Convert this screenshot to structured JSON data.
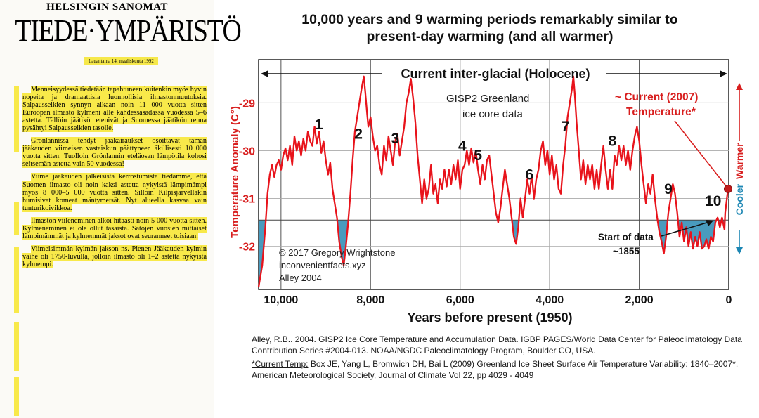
{
  "clipping": {
    "publication": "HELSINGIN SANOMAT",
    "section": "TIEDE·YMPÄRISTÖ",
    "date": "Lauantaina 14. maaliskuuta 1992",
    "paragraphs": [
      "Menneisyydessä tiedetään tapahtuneen kuitenkin myös hyvin nopeita ja dramaattisia luonnollisia ilmastonmuutoksia. Salpausselkien synnyn aikaan noin 11 000 vuotta sitten Euroopan ilmasto kylmeni alle kahdessasadassa vuodessa 5–6 astetta. Tällöin jäätiköt etenivät ja Suomessa jäätikön reuna pysähtyi Salpausselkien tasolle.",
      "Grönlannissa tehdyt jääkairaukset osoittavat tämän jääkauden viimeisen vastaiskun päättyneen äkillisesti 10 000 vuotta sitten. Tuolloin Grönlannin eteläosan lämpötila kohosi seitsemän astetta vain 50 vuodessa!",
      "Viime jääkauden jälkeisistä kerrostumista tiedämme, että Suomen ilmasto oli noin kaksi astetta nykyistä lämpimämpi myös 8 000–5 000 vuotta sitten. Silloin Kilpisjärvelläkin humisivat komeat mäntymetsät. Nyt alueella kasvaa vain tunturikoivikkoa.",
      "Ilmaston viileneminen alkoi hitaasti noin 5 000 vuotta sitten. Kylmeneminen ei ole ollut tasaista. Satojen vuosien mittaiset lämpimämmät ja kylmemmät jaksot ovat seuranneet toisiaan.",
      "Viimeisimmän kylmän jakson ns. Pienen Jääkauden kylmin vaihe oli 1750-luvulla, jolloin ilmasto oli 1–2 astetta nykyistä kylmempi."
    ]
  },
  "chart_data": {
    "type": "line",
    "title": "10,000 years and 9 warming periods remarkably similar to present-day warming (and all warmer)",
    "xlabel": "Years before present (1950)",
    "ylabel": "Temperature Anomaly (C°)",
    "xlim": [
      10500,
      0
    ],
    "ylim": [
      -32.9,
      -28.1
    ],
    "x_ticks": [
      10000,
      8000,
      6000,
      4000,
      2000,
      0
    ],
    "x_tick_labels": [
      "10,000",
      "8,000",
      "6,000",
      "4,000",
      "2,000",
      "0"
    ],
    "y_ticks": [
      -29,
      -30,
      -31,
      -32
    ],
    "y_tick_labels": [
      "-29",
      "-30",
      "-31",
      "-32"
    ],
    "reference_line": -31.45,
    "series": [
      {
        "values": [
          [
            10500,
            -32.85
          ],
          [
            10420,
            -32.4
          ],
          [
            10350,
            -31.6
          ],
          [
            10300,
            -30.9
          ],
          [
            10250,
            -30.5
          ],
          [
            10200,
            -30.3
          ],
          [
            10150,
            -30.55
          ],
          [
            10100,
            -30.3
          ],
          [
            10050,
            -30.2
          ],
          [
            10000,
            -30.4
          ],
          [
            9950,
            -30.1
          ],
          [
            9900,
            -29.95
          ],
          [
            9850,
            -30.2
          ],
          [
            9800,
            -29.9
          ],
          [
            9750,
            -30.3
          ],
          [
            9700,
            -29.7
          ],
          [
            9650,
            -30.0
          ],
          [
            9600,
            -29.8
          ],
          [
            9550,
            -30.1
          ],
          [
            9500,
            -29.75
          ],
          [
            9450,
            -30.0
          ],
          [
            9400,
            -29.6
          ],
          [
            9350,
            -29.8
          ],
          [
            9300,
            -29.9
          ],
          [
            9250,
            -29.5
          ],
          [
            9200,
            -29.85
          ],
          [
            9150,
            -29.6
          ],
          [
            9100,
            -30.05
          ],
          [
            9050,
            -29.8
          ],
          [
            9000,
            -30.2
          ],
          [
            8950,
            -30.5
          ],
          [
            8900,
            -30.25
          ],
          [
            8850,
            -30.8
          ],
          [
            8800,
            -31.1
          ],
          [
            8750,
            -31.4
          ],
          [
            8700,
            -31.9
          ],
          [
            8650,
            -32.2
          ],
          [
            8600,
            -32.4
          ],
          [
            8550,
            -32.0
          ],
          [
            8500,
            -31.5
          ],
          [
            8450,
            -30.9
          ],
          [
            8400,
            -30.2
          ],
          [
            8350,
            -29.6
          ],
          [
            8300,
            -29.3
          ],
          [
            8250,
            -29.0
          ],
          [
            8200,
            -28.7
          ],
          [
            8150,
            -28.45
          ],
          [
            8120,
            -28.75
          ],
          [
            8080,
            -29.2
          ],
          [
            8050,
            -29.5
          ],
          [
            8000,
            -29.3
          ],
          [
            7950,
            -29.7
          ],
          [
            7900,
            -30.0
          ],
          [
            7850,
            -29.9
          ],
          [
            7800,
            -30.3
          ],
          [
            7750,
            -30.5
          ],
          [
            7700,
            -29.9
          ],
          [
            7650,
            -30.2
          ],
          [
            7600,
            -29.7
          ],
          [
            7550,
            -30.0
          ],
          [
            7500,
            -30.3
          ],
          [
            7450,
            -29.8
          ],
          [
            7400,
            -29.65
          ],
          [
            7350,
            -30.1
          ],
          [
            7300,
            -29.8
          ],
          [
            7250,
            -29.5
          ],
          [
            7200,
            -29.0
          ],
          [
            7150,
            -28.8
          ],
          [
            7100,
            -28.5
          ],
          [
            7050,
            -28.9
          ],
          [
            7000,
            -29.4
          ],
          [
            6950,
            -30.1
          ],
          [
            6900,
            -30.6
          ],
          [
            6850,
            -31.1
          ],
          [
            6800,
            -30.6
          ],
          [
            6750,
            -31.0
          ],
          [
            6700,
            -30.8
          ],
          [
            6650,
            -30.3
          ],
          [
            6600,
            -30.9
          ],
          [
            6550,
            -30.7
          ],
          [
            6500,
            -31.1
          ],
          [
            6450,
            -30.6
          ],
          [
            6400,
            -30.8
          ],
          [
            6350,
            -30.4
          ],
          [
            6300,
            -30.75
          ],
          [
            6250,
            -30.4
          ],
          [
            6200,
            -30.7
          ],
          [
            6150,
            -30.3
          ],
          [
            6100,
            -30.6
          ],
          [
            6050,
            -30.2
          ],
          [
            6000,
            -30.8
          ],
          [
            5950,
            -30.4
          ],
          [
            5900,
            -30.3
          ],
          [
            5850,
            -30.0
          ],
          [
            5800,
            -30.3
          ],
          [
            5750,
            -29.95
          ],
          [
            5700,
            -30.25
          ],
          [
            5650,
            -30.0
          ],
          [
            5600,
            -30.4
          ],
          [
            5550,
            -30.7
          ],
          [
            5500,
            -30.3
          ],
          [
            5450,
            -30.6
          ],
          [
            5400,
            -30.2
          ],
          [
            5350,
            -30.1
          ],
          [
            5300,
            -30.5
          ],
          [
            5250,
            -30.9
          ],
          [
            5200,
            -31.3
          ],
          [
            5150,
            -31.5
          ],
          [
            5100,
            -31.2
          ],
          [
            5050,
            -30.8
          ],
          [
            5000,
            -30.4
          ],
          [
            4950,
            -30.7
          ],
          [
            4900,
            -31.0
          ],
          [
            4850,
            -31.4
          ],
          [
            4800,
            -31.8
          ],
          [
            4750,
            -31.95
          ],
          [
            4700,
            -31.6
          ],
          [
            4650,
            -31.0
          ],
          [
            4600,
            -31.4
          ],
          [
            4550,
            -31.0
          ],
          [
            4500,
            -30.6
          ],
          [
            4450,
            -30.9
          ],
          [
            4400,
            -30.5
          ],
          [
            4350,
            -31.0
          ],
          [
            4300,
            -30.6
          ],
          [
            4250,
            -30.4
          ],
          [
            4200,
            -30.0
          ],
          [
            4150,
            -29.8
          ],
          [
            4100,
            -30.3
          ],
          [
            4050,
            -30.0
          ],
          [
            4000,
            -30.5
          ],
          [
            3950,
            -30.1
          ],
          [
            3900,
            -30.6
          ],
          [
            3850,
            -30.3
          ],
          [
            3800,
            -30.8
          ],
          [
            3750,
            -30.9
          ],
          [
            3700,
            -30.3
          ],
          [
            3650,
            -29.9
          ],
          [
            3600,
            -29.3
          ],
          [
            3550,
            -29.0
          ],
          [
            3500,
            -28.7
          ],
          [
            3470,
            -28.45
          ],
          [
            3440,
            -28.8
          ],
          [
            3400,
            -29.4
          ],
          [
            3350,
            -30.0
          ],
          [
            3300,
            -30.6
          ],
          [
            3250,
            -30.2
          ],
          [
            3200,
            -30.7
          ],
          [
            3150,
            -30.3
          ],
          [
            3100,
            -30.6
          ],
          [
            3050,
            -30.3
          ],
          [
            3000,
            -30.8
          ],
          [
            2950,
            -30.4
          ],
          [
            2900,
            -30.8
          ],
          [
            2850,
            -30.3
          ],
          [
            2800,
            -29.9
          ],
          [
            2750,
            -30.4
          ],
          [
            2700,
            -30.8
          ],
          [
            2650,
            -30.4
          ],
          [
            2600,
            -30.8
          ],
          [
            2550,
            -30.1
          ],
          [
            2500,
            -30.3
          ],
          [
            2450,
            -29.9
          ],
          [
            2400,
            -30.2
          ],
          [
            2350,
            -29.9
          ],
          [
            2300,
            -30.3
          ],
          [
            2250,
            -30.0
          ],
          [
            2200,
            -30.4
          ],
          [
            2150,
            -30.0
          ],
          [
            2100,
            -29.7
          ],
          [
            2050,
            -29.5
          ],
          [
            2000,
            -29.8
          ],
          [
            1950,
            -30.3
          ],
          [
            1900,
            -30.7
          ],
          [
            1850,
            -31.1
          ],
          [
            1800,
            -30.7
          ],
          [
            1750,
            -30.9
          ],
          [
            1700,
            -30.5
          ],
          [
            1650,
            -31.0
          ],
          [
            1600,
            -31.4
          ],
          [
            1550,
            -31.7
          ],
          [
            1500,
            -31.9
          ],
          [
            1450,
            -32.15
          ],
          [
            1400,
            -31.8
          ],
          [
            1350,
            -31.3
          ],
          [
            1300,
            -31.0
          ],
          [
            1250,
            -30.7
          ],
          [
            1200,
            -30.9
          ],
          [
            1150,
            -31.3
          ],
          [
            1100,
            -31.8
          ],
          [
            1050,
            -31.5
          ],
          [
            1000,
            -31.9
          ],
          [
            950,
            -31.6
          ],
          [
            900,
            -32.0
          ],
          [
            850,
            -31.7
          ],
          [
            800,
            -32.05
          ],
          [
            750,
            -31.8
          ],
          [
            700,
            -32.0
          ],
          [
            650,
            -31.7
          ],
          [
            600,
            -32.05
          ],
          [
            550,
            -32.0
          ],
          [
            500,
            -31.85
          ],
          [
            450,
            -32.05
          ],
          [
            400,
            -31.8
          ],
          [
            350,
            -31.9
          ],
          [
            300,
            -31.5
          ],
          [
            250,
            -31.4
          ],
          [
            200,
            -31.6
          ],
          [
            150,
            -31.4
          ],
          [
            95,
            -31.65
          ],
          [
            80,
            -31.3
          ],
          [
            55,
            -31.1
          ],
          [
            30,
            -30.9
          ],
          [
            0,
            -30.8
          ]
        ]
      }
    ],
    "warming_period_labels": [
      {
        "label": "1",
        "x": 9150,
        "y": -29.55
      },
      {
        "label": "2",
        "x": 8270,
        "y": -29.75
      },
      {
        "label": "3",
        "x": 7450,
        "y": -29.85
      },
      {
        "label": "4",
        "x": 5950,
        "y": -30.0
      },
      {
        "label": "5",
        "x": 5600,
        "y": -30.2
      },
      {
        "label": "6",
        "x": 4450,
        "y": -30.6
      },
      {
        "label": "7",
        "x": 3650,
        "y": -29.6
      },
      {
        "label": "8",
        "x": 2600,
        "y": -29.9
      },
      {
        "label": "9",
        "x": 1350,
        "y": -30.9
      },
      {
        "label": "10",
        "x": 350,
        "y": -31.15
      }
    ],
    "annotations": {
      "holocene": "Current inter-glacial (Holocene)",
      "source_title": "GISP2 Greenland",
      "source_sub": "ice core data",
      "current_temp_line1": "~ Current (2007)",
      "current_temp_line2": "Temperature*",
      "current_temp_value": {
        "x": 0,
        "y": -30.8
      },
      "start_label_line1": "Start of data",
      "start_label_line2": "~1855",
      "credit1": "© 2017 Gregory Wrightstone",
      "credit2": "inconvenientfacts.xyz",
      "credit3": "Alley 2004",
      "side_warmer": "Warmer",
      "side_cooler": "Cooler"
    },
    "colors": {
      "line": "#e8131b",
      "fill": "#3a93b8",
      "accent_red": "#d81e1e",
      "side_blue": "#1d87b4"
    }
  },
  "references": {
    "ref1": "Alley, R.B.. 2004. GISP2 Ice Core Temperature and Accumulation Data. IGBP PAGES/World Data Center for Paleoclimatology Data Contribution Series #2004-013. NOAA/NGDC Paleoclimatology Program, Boulder CO, USA.",
    "ref2_label": "*Current Temp:",
    "ref2": " Box JE, Yang L, Bromwich DH, Bai L (2009) Greenland Ice Sheet Surface Air Temperature Variability: 1840–2007*. American Meteorological Society, Journal of Climate Vol 22, pp 4029 - 4049"
  }
}
